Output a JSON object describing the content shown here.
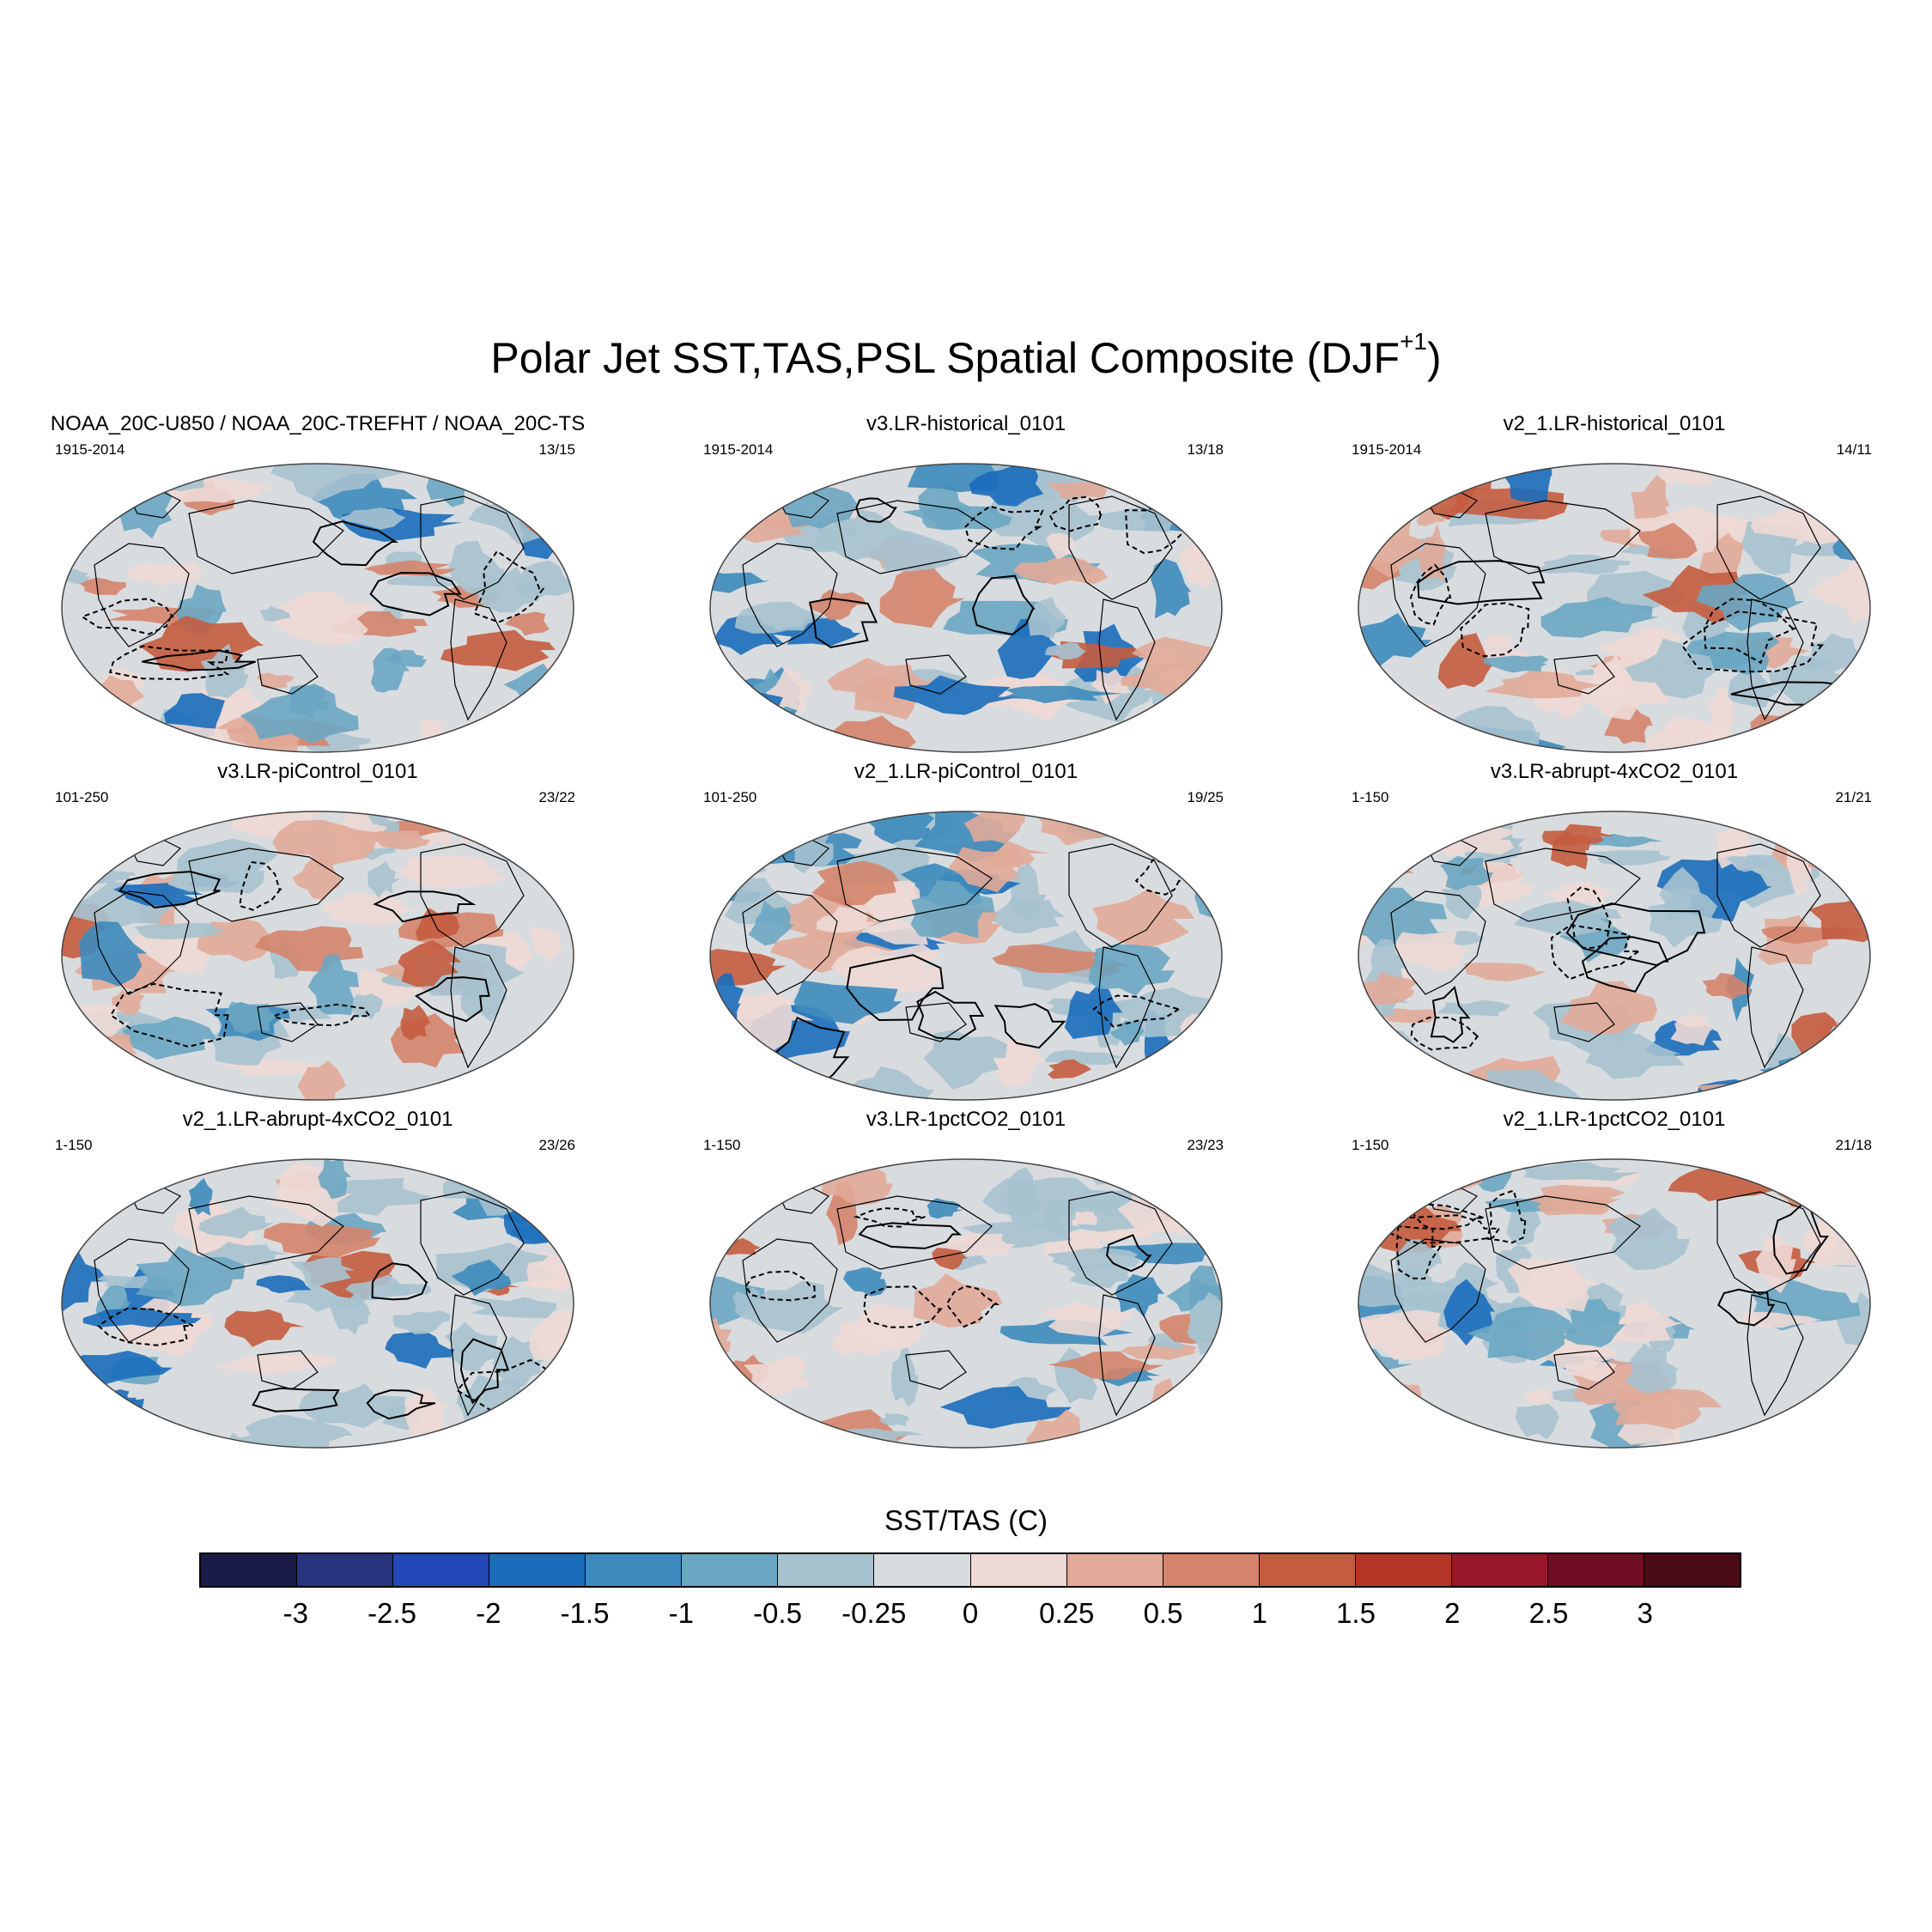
{
  "figure": {
    "title_main": "Polar Jet SST,TAS,PSL Spatial Composite (DJF",
    "title_sup": "+1",
    "title_end": ")"
  },
  "panels": [
    {
      "title": "NOAA_20C-U850 / NOAA_20C-TREFHT / NOAA_20C-TS",
      "period": "1915-2014",
      "count": "13/15"
    },
    {
      "title": "v3.LR-historical_0101",
      "period": "1915-2014",
      "count": "13/18"
    },
    {
      "title": "v2_1.LR-historical_0101",
      "period": "1915-2014",
      "count": "14/11"
    },
    {
      "title": "v3.LR-piControl_0101",
      "period": "101-250",
      "count": "23/22"
    },
    {
      "title": "v2_1.LR-piControl_0101",
      "period": "101-250",
      "count": "19/25"
    },
    {
      "title": "v3.LR-abrupt-4xCO2_0101",
      "period": "1-150",
      "count": "21/21"
    },
    {
      "title": "v2_1.LR-abrupt-4xCO2_0101",
      "period": "1-150",
      "count": "23/26"
    },
    {
      "title": "v3.LR-1pctCO2_0101",
      "period": "1-150",
      "count": "23/23"
    },
    {
      "title": "v2_1.LR-1pctCO2_0101",
      "period": "1-150",
      "count": "21/18"
    }
  ],
  "colorbar": {
    "title": "SST/TAS (C)",
    "labels": [
      "-3",
      "-2.5",
      "-2",
      "-1.5",
      "-1",
      "-0.5",
      "-0.25",
      "0",
      "0.25",
      "0.5",
      "1",
      "1.5",
      "2",
      "2.5",
      "3"
    ],
    "colors": [
      "#1b1b47",
      "#29347f",
      "#2349b8",
      "#1a6dbb",
      "#3d8bbd",
      "#6aa6c2",
      "#a6c2cf",
      "#d9dcdf",
      "#eed9d5",
      "#e1aa98",
      "#d4846c",
      "#c45c3f",
      "#b53527",
      "#99172a",
      "#700f24",
      "#4b0b17"
    ]
  }
}
